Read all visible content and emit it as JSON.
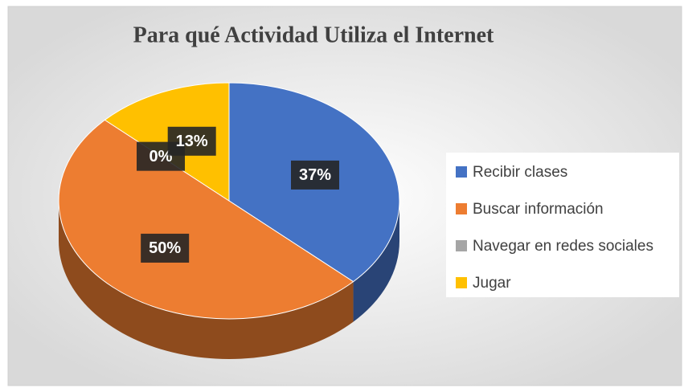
{
  "chart_data": {
    "type": "pie",
    "title": "Para qué Actividad Utiliza el Internet",
    "categories": [
      "Recibir clases",
      "Buscar información",
      "Navegar en redes sociales",
      "Jugar"
    ],
    "values": [
      37,
      50,
      0,
      13
    ],
    "value_labels": [
      "37%",
      "50%",
      "0%",
      "13%"
    ],
    "colors": [
      "#4472c4",
      "#ed7d31",
      "#a5a5a5",
      "#ffc000"
    ],
    "legend": "right"
  }
}
